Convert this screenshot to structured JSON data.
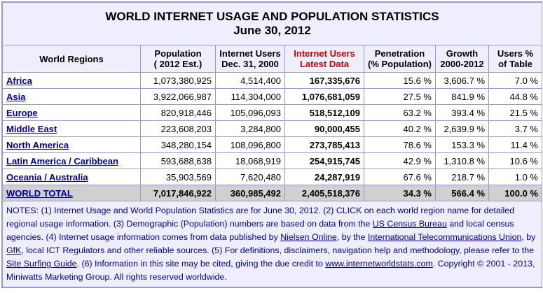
{
  "title_line1": "WORLD INTERNET USAGE AND POPULATION STATISTICS",
  "title_line2": "June 30, 2012",
  "headers": {
    "region": "World Regions",
    "population": "Population\n( 2012 Est.)",
    "users_2000": "Internet Users\nDec. 31, 2000",
    "users_latest": "Internet Users\nLatest Data",
    "penetration": "Penetration\n(% Population)",
    "growth": "Growth\n2000-2012",
    "users_pct": "Users %\nof Table"
  },
  "rows": [
    {
      "region": "Africa",
      "population": "1,073,380,925",
      "users_2000": "4,514,400",
      "users_latest": "167,335,676",
      "penetration": "15.6 %",
      "growth": "3,606.7 %",
      "users_pct": "7.0 %"
    },
    {
      "region": "Asia",
      "population": "3,922,066,987",
      "users_2000": "114,304,000",
      "users_latest": "1,076,681,059",
      "penetration": "27.5 %",
      "growth": "841.9 %",
      "users_pct": "44.8 %"
    },
    {
      "region": "Europe",
      "population": "820,918,446",
      "users_2000": "105,096,093",
      "users_latest": "518,512,109",
      "penetration": "63.2 %",
      "growth": "393.4 %",
      "users_pct": "21.5 %"
    },
    {
      "region": "Middle East",
      "population": "223,608,203",
      "users_2000": "3,284,800",
      "users_latest": "90,000,455",
      "penetration": "40.2 %",
      "growth": "2,639.9 %",
      "users_pct": "3.7 %"
    },
    {
      "region": "North America",
      "population": "348,280,154",
      "users_2000": "108,096,800",
      "users_latest": "273,785,413",
      "penetration": "78.6 %",
      "growth": "153.3 %",
      "users_pct": "11.4 %"
    },
    {
      "region": "Latin America / Caribbean",
      "population": "593,688,638",
      "users_2000": "18,068,919",
      "users_latest": "254,915,745",
      "penetration": "42.9 %",
      "growth": "1,310.8 %",
      "users_pct": "10.6 %"
    },
    {
      "region": "Oceania / Australia",
      "population": "35,903,569",
      "users_2000": "7,620,480",
      "users_latest": "24,287,919",
      "penetration": "67.6 %",
      "growth": "218.7 %",
      "users_pct": "1.0 %"
    }
  ],
  "total": {
    "region": "WORLD TOTAL",
    "population": "7,017,846,922",
    "users_2000": "360,985,492",
    "users_latest": "2,405,518,376",
    "penetration": "34.3 %",
    "growth": "566.4 %",
    "users_pct": "100.0 %"
  },
  "notes": {
    "t1": "NOTES: (1) Internet Usage and World Population Statistics are for June 30, 2012. (2) CLICK on each world region name for detailed regional usage information. (3) Demographic (Population) numbers are based on data from the ",
    "l1": "US Census Bureau",
    "t2": " and local census agencies. (4) Internet usage information comes from data published by ",
    "l2": "Nielsen Online",
    "t3": ", by the ",
    "l3": "International Telecommunications Union",
    "t4": ", by ",
    "l4": "GfK",
    "t5": ", local ICT Regulators and other reliable sources. (5) For definitions, disclaimers, navigation help and methodology, please refer to the ",
    "l5": "Site Surfing Guide",
    "t6": ". (6) Information in this site may be cited, giving the due credit to ",
    "l6": "www.internetworldstats.com",
    "t7": ". Copyright © 2001 - 2013, Miniwatts Marketing Group. All rights reserved worldwide."
  },
  "colors": {
    "header_bg": "#eeeeff",
    "title_blue": "#000099",
    "latest_red": "#cc0000",
    "total_bg": "#d0d0d0",
    "border": "#9999cc"
  }
}
